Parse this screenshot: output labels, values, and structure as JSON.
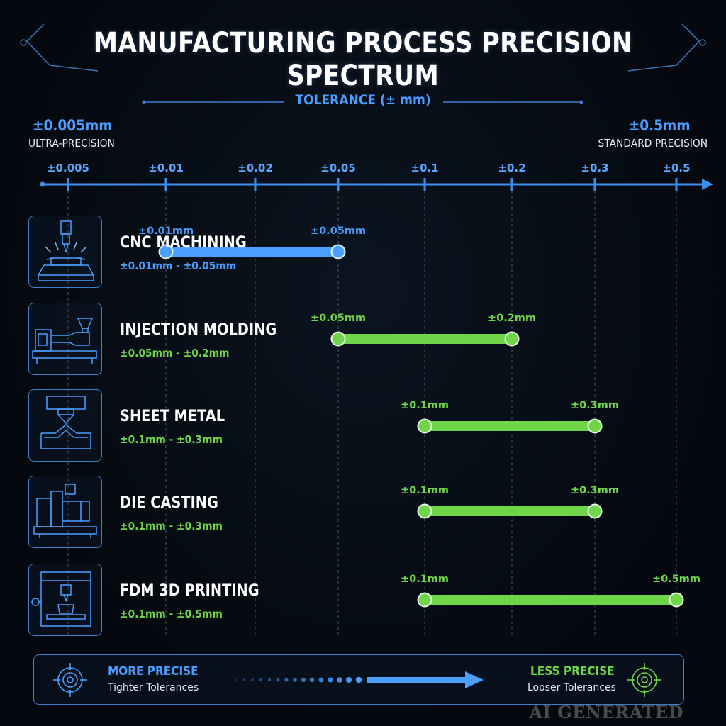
{
  "title": "MANUFACTURING PROCESS PRECISION SPECTRUM",
  "axis": {
    "title": "TOLERANCE (± mm)",
    "left_value": "±0.005mm",
    "left_label": "ULTRA-PRECISION",
    "right_value": "±0.5mm",
    "right_label": "STANDARD PRECISION"
  },
  "colors": {
    "accent": "#4a9eff",
    "precise": "#4a9eff",
    "standard": "#6fd64a",
    "background": "#05090f"
  },
  "chart_data": {
    "type": "range-bar",
    "xlabel": "TOLERANCE (± mm)",
    "x_scale": "log",
    "ticks": [
      {
        "value": 0.005,
        "label": "±0.005"
      },
      {
        "value": 0.01,
        "label": "±0.01"
      },
      {
        "value": 0.02,
        "label": "±0.02"
      },
      {
        "value": 0.05,
        "label": "±0.05"
      },
      {
        "value": 0.1,
        "label": "±0.1"
      },
      {
        "value": 0.2,
        "label": "±0.2"
      },
      {
        "value": 0.3,
        "label": "±0.3"
      },
      {
        "value": 0.5,
        "label": "±0.5"
      }
    ],
    "processes": [
      {
        "name": "CNC MACHINING",
        "range_text": "±0.01mm - ±0.05mm",
        "min": 0.01,
        "max": 0.05,
        "min_label": "±0.01mm",
        "max_label": "±0.05mm",
        "color": "#4a9eff",
        "icon": "cnc-machine-icon"
      },
      {
        "name": "INJECTION MOLDING",
        "range_text": "±0.05mm - ±0.2mm",
        "min": 0.05,
        "max": 0.2,
        "min_label": "±0.05mm",
        "max_label": "±0.2mm",
        "color": "#6fd64a",
        "icon": "injection-molding-icon"
      },
      {
        "name": "SHEET METAL",
        "range_text": "±0.1mm - ±0.3mm",
        "min": 0.1,
        "max": 0.3,
        "min_label": "±0.1mm",
        "max_label": "±0.3mm",
        "color": "#6fd64a",
        "icon": "sheet-metal-press-icon"
      },
      {
        "name": "DIE CASTING",
        "range_text": "±0.1mm - ±0.3mm",
        "min": 0.1,
        "max": 0.3,
        "min_label": "±0.1mm",
        "max_label": "±0.3mm",
        "color": "#6fd64a",
        "icon": "die-casting-machine-icon"
      },
      {
        "name": "FDM 3D PRINTING",
        "range_text": "±0.1mm - ±0.5mm",
        "min": 0.1,
        "max": 0.5,
        "min_label": "±0.1mm",
        "max_label": "±0.5mm",
        "color": "#6fd64a",
        "icon": "3d-printer-icon"
      }
    ]
  },
  "legend": {
    "left_title": "MORE PRECISE",
    "left_sub": "Tighter Tolerances",
    "right_title": "LESS PRECISE",
    "right_sub": "Looser Tolerances",
    "left_icon": "target-blue-icon",
    "right_icon": "target-green-icon"
  },
  "watermark": "AI GENERATED"
}
